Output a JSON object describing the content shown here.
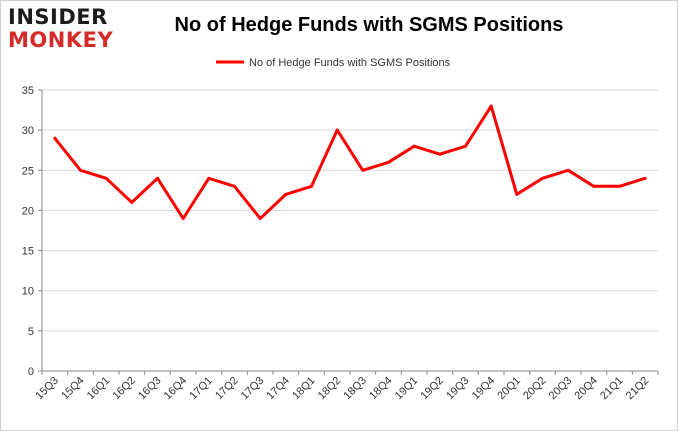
{
  "logo": {
    "line1": "INSIDER",
    "line2": "MONKEY"
  },
  "chart_data": {
    "type": "line",
    "title": "No of Hedge Funds with SGMS Positions",
    "xlabel": "",
    "ylabel": "",
    "ylim": [
      0,
      35
    ],
    "yticks": [
      0,
      5,
      10,
      15,
      20,
      25,
      30,
      35
    ],
    "grid": true,
    "legend_position": "top-center",
    "categories": [
      "15Q3",
      "15Q4",
      "16Q1",
      "16Q2",
      "16Q3",
      "16Q4",
      "17Q1",
      "17Q2",
      "17Q3",
      "17Q4",
      "18Q1",
      "18Q2",
      "18Q3",
      "18Q4",
      "19Q1",
      "19Q2",
      "19Q3",
      "19Q4",
      "20Q1",
      "20Q2",
      "20Q3",
      "20Q4",
      "21Q1",
      "21Q2"
    ],
    "series": [
      {
        "name": "No of Hedge Funds with SGMS Positions",
        "color": "#ff0000",
        "values": [
          29,
          25,
          24,
          21,
          24,
          19,
          24,
          23,
          19,
          22,
          23,
          30,
          25,
          26,
          28,
          27,
          28,
          33,
          22,
          24,
          25,
          23,
          23,
          24
        ]
      }
    ]
  }
}
